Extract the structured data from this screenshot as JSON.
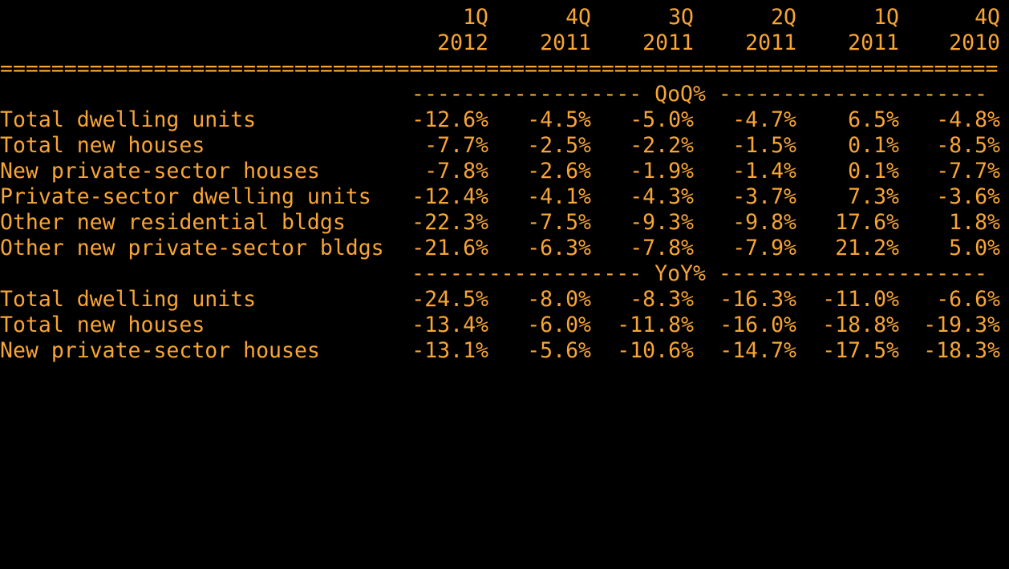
{
  "header": {
    "quarters": [
      "1Q",
      "4Q",
      "3Q",
      "2Q",
      "1Q",
      "4Q"
    ],
    "years": [
      "2012",
      "2011",
      "2011",
      "2011",
      "2011",
      "2010"
    ]
  },
  "rule_line": "==============================================================================",
  "sections": [
    {
      "divider": "------------------ QoQ% ---------------------",
      "rows": [
        {
          "label": "Total dwelling units",
          "values": [
            "-12.6%",
            "-4.5%",
            "-5.0%",
            "-4.7%",
            "6.5%",
            "-4.8%"
          ]
        },
        {
          "label": "Total new houses",
          "values": [
            "-7.7%",
            "-2.5%",
            "-2.2%",
            "-1.5%",
            "0.1%",
            "-8.5%"
          ]
        },
        {
          "label": "New private-sector houses",
          "values": [
            "-7.8%",
            "-2.6%",
            "-1.9%",
            "-1.4%",
            "0.1%",
            "-7.7%"
          ]
        },
        {
          "label": "Private-sector dwelling units",
          "values": [
            "-12.4%",
            "-4.1%",
            "-4.3%",
            "-3.7%",
            "7.3%",
            "-3.6%"
          ]
        },
        {
          "label": "Other new residential bldgs",
          "values": [
            "-22.3%",
            "-7.5%",
            "-9.3%",
            "-9.8%",
            "17.6%",
            "1.8%"
          ]
        },
        {
          "label": "Other new private-sector bldgs",
          "values": [
            "-21.6%",
            "-6.3%",
            "-7.8%",
            "-7.9%",
            "21.2%",
            "5.0%"
          ]
        }
      ]
    },
    {
      "divider": "------------------ YoY% ---------------------",
      "rows": [
        {
          "label": "Total dwelling units",
          "values": [
            "-24.5%",
            "-8.0%",
            "-8.3%",
            "-16.3%",
            "-11.0%",
            "-6.6%"
          ]
        },
        {
          "label": "Total new houses",
          "values": [
            "-13.4%",
            "-6.0%",
            "-11.8%",
            "-16.0%",
            "-18.8%",
            "-19.3%"
          ]
        },
        {
          "label": "New private-sector houses",
          "values": [
            "-13.1%",
            "-5.6%",
            "-10.6%",
            "-14.7%",
            "-17.5%",
            "-18.3%"
          ]
        }
      ]
    }
  ],
  "colors": {
    "background": "#000000",
    "text": "#F7A535"
  }
}
